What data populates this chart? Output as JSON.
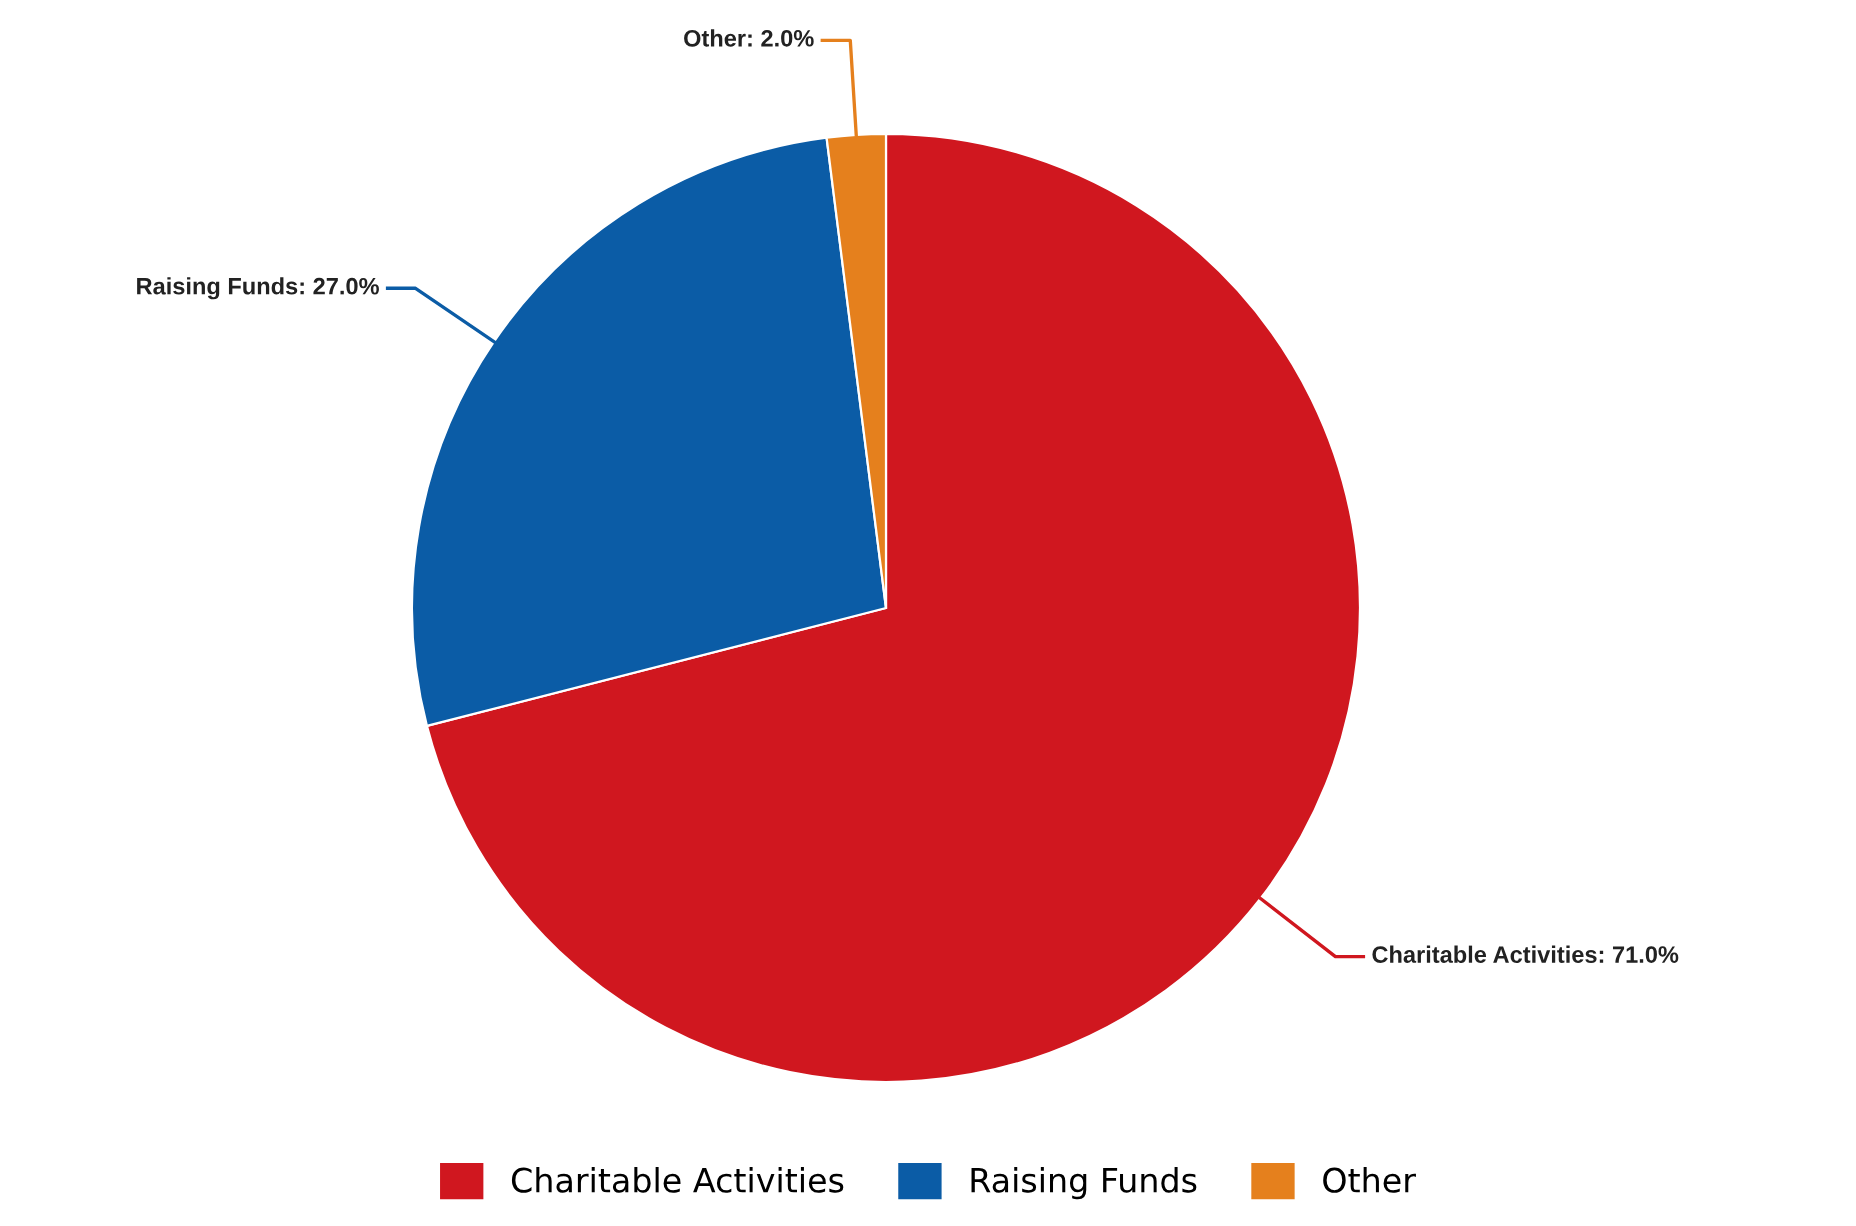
{
  "chart_data": {
    "type": "pie",
    "categories": [
      "Charitable Activities",
      "Raising Funds",
      "Other"
    ],
    "values": [
      71,
      27,
      2
    ],
    "value_labels": [
      "Charitable Activities: 71.0%",
      "Raising Funds: 27.0%",
      "Other: 2.0%"
    ],
    "colors": [
      "#d0171f",
      "#0b5ca6",
      "#e5801d"
    ],
    "legend": "bottom"
  }
}
